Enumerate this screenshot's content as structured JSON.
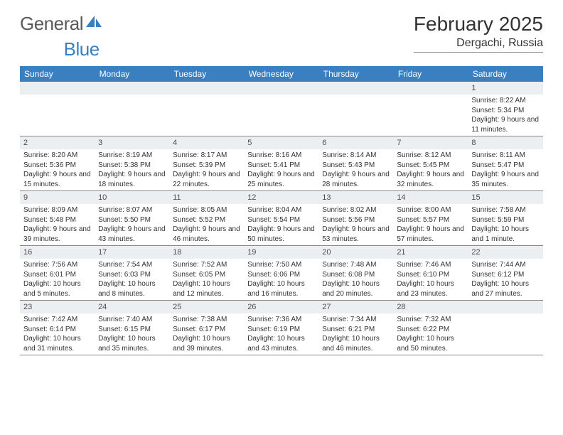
{
  "logo": {
    "text1": "General",
    "text2": "Blue"
  },
  "title": "February 2025",
  "location": "Dergachi, Russia",
  "colors": {
    "header_bg": "#3a7fc0",
    "header_text": "#ffffff",
    "daynum_bg": "#eceff1",
    "text": "#333333",
    "rule": "#888888"
  },
  "weekdays": [
    "Sunday",
    "Monday",
    "Tuesday",
    "Wednesday",
    "Thursday",
    "Friday",
    "Saturday"
  ],
  "weeks": [
    [
      null,
      null,
      null,
      null,
      null,
      null,
      {
        "n": "1",
        "sr": "Sunrise: 8:22 AM",
        "ss": "Sunset: 5:34 PM",
        "dl": "Daylight: 9 hours and 11 minutes."
      }
    ],
    [
      {
        "n": "2",
        "sr": "Sunrise: 8:20 AM",
        "ss": "Sunset: 5:36 PM",
        "dl": "Daylight: 9 hours and 15 minutes."
      },
      {
        "n": "3",
        "sr": "Sunrise: 8:19 AM",
        "ss": "Sunset: 5:38 PM",
        "dl": "Daylight: 9 hours and 18 minutes."
      },
      {
        "n": "4",
        "sr": "Sunrise: 8:17 AM",
        "ss": "Sunset: 5:39 PM",
        "dl": "Daylight: 9 hours and 22 minutes."
      },
      {
        "n": "5",
        "sr": "Sunrise: 8:16 AM",
        "ss": "Sunset: 5:41 PM",
        "dl": "Daylight: 9 hours and 25 minutes."
      },
      {
        "n": "6",
        "sr": "Sunrise: 8:14 AM",
        "ss": "Sunset: 5:43 PM",
        "dl": "Daylight: 9 hours and 28 minutes."
      },
      {
        "n": "7",
        "sr": "Sunrise: 8:12 AM",
        "ss": "Sunset: 5:45 PM",
        "dl": "Daylight: 9 hours and 32 minutes."
      },
      {
        "n": "8",
        "sr": "Sunrise: 8:11 AM",
        "ss": "Sunset: 5:47 PM",
        "dl": "Daylight: 9 hours and 35 minutes."
      }
    ],
    [
      {
        "n": "9",
        "sr": "Sunrise: 8:09 AM",
        "ss": "Sunset: 5:48 PM",
        "dl": "Daylight: 9 hours and 39 minutes."
      },
      {
        "n": "10",
        "sr": "Sunrise: 8:07 AM",
        "ss": "Sunset: 5:50 PM",
        "dl": "Daylight: 9 hours and 43 minutes."
      },
      {
        "n": "11",
        "sr": "Sunrise: 8:05 AM",
        "ss": "Sunset: 5:52 PM",
        "dl": "Daylight: 9 hours and 46 minutes."
      },
      {
        "n": "12",
        "sr": "Sunrise: 8:04 AM",
        "ss": "Sunset: 5:54 PM",
        "dl": "Daylight: 9 hours and 50 minutes."
      },
      {
        "n": "13",
        "sr": "Sunrise: 8:02 AM",
        "ss": "Sunset: 5:56 PM",
        "dl": "Daylight: 9 hours and 53 minutes."
      },
      {
        "n": "14",
        "sr": "Sunrise: 8:00 AM",
        "ss": "Sunset: 5:57 PM",
        "dl": "Daylight: 9 hours and 57 minutes."
      },
      {
        "n": "15",
        "sr": "Sunrise: 7:58 AM",
        "ss": "Sunset: 5:59 PM",
        "dl": "Daylight: 10 hours and 1 minute."
      }
    ],
    [
      {
        "n": "16",
        "sr": "Sunrise: 7:56 AM",
        "ss": "Sunset: 6:01 PM",
        "dl": "Daylight: 10 hours and 5 minutes."
      },
      {
        "n": "17",
        "sr": "Sunrise: 7:54 AM",
        "ss": "Sunset: 6:03 PM",
        "dl": "Daylight: 10 hours and 8 minutes."
      },
      {
        "n": "18",
        "sr": "Sunrise: 7:52 AM",
        "ss": "Sunset: 6:05 PM",
        "dl": "Daylight: 10 hours and 12 minutes."
      },
      {
        "n": "19",
        "sr": "Sunrise: 7:50 AM",
        "ss": "Sunset: 6:06 PM",
        "dl": "Daylight: 10 hours and 16 minutes."
      },
      {
        "n": "20",
        "sr": "Sunrise: 7:48 AM",
        "ss": "Sunset: 6:08 PM",
        "dl": "Daylight: 10 hours and 20 minutes."
      },
      {
        "n": "21",
        "sr": "Sunrise: 7:46 AM",
        "ss": "Sunset: 6:10 PM",
        "dl": "Daylight: 10 hours and 23 minutes."
      },
      {
        "n": "22",
        "sr": "Sunrise: 7:44 AM",
        "ss": "Sunset: 6:12 PM",
        "dl": "Daylight: 10 hours and 27 minutes."
      }
    ],
    [
      {
        "n": "23",
        "sr": "Sunrise: 7:42 AM",
        "ss": "Sunset: 6:14 PM",
        "dl": "Daylight: 10 hours and 31 minutes."
      },
      {
        "n": "24",
        "sr": "Sunrise: 7:40 AM",
        "ss": "Sunset: 6:15 PM",
        "dl": "Daylight: 10 hours and 35 minutes."
      },
      {
        "n": "25",
        "sr": "Sunrise: 7:38 AM",
        "ss": "Sunset: 6:17 PM",
        "dl": "Daylight: 10 hours and 39 minutes."
      },
      {
        "n": "26",
        "sr": "Sunrise: 7:36 AM",
        "ss": "Sunset: 6:19 PM",
        "dl": "Daylight: 10 hours and 43 minutes."
      },
      {
        "n": "27",
        "sr": "Sunrise: 7:34 AM",
        "ss": "Sunset: 6:21 PM",
        "dl": "Daylight: 10 hours and 46 minutes."
      },
      {
        "n": "28",
        "sr": "Sunrise: 7:32 AM",
        "ss": "Sunset: 6:22 PM",
        "dl": "Daylight: 10 hours and 50 minutes."
      },
      null
    ]
  ]
}
